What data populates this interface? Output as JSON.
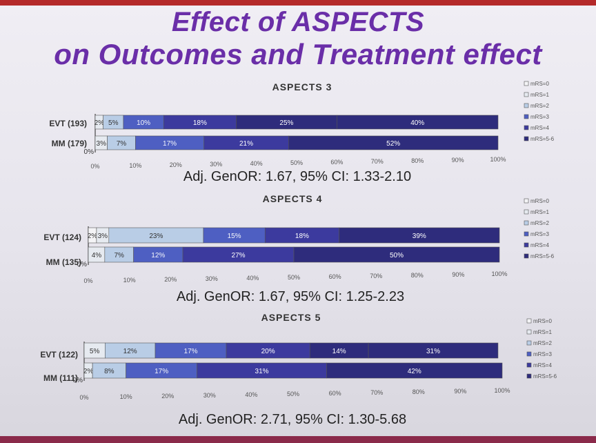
{
  "title_lines": [
    "Effect of ASPECTS",
    "on Outcomes and Treatment effect"
  ],
  "chart_data": [
    {
      "type": "bar",
      "stacked": true,
      "orientation": "horizontal",
      "title": "ASPECTS 3",
      "categories": [
        "EVT (193)",
        "MM (179)"
      ],
      "x_ticks": [
        "0%",
        "10%",
        "20%",
        "30%",
        "40%",
        "50%",
        "60%",
        "70%",
        "80%",
        "90%",
        "100%"
      ],
      "xlim": [
        0,
        100
      ],
      "series": [
        {
          "name": "mRS=0",
          "values": [
            0,
            0
          ],
          "labels": [
            "",
            "0%"
          ]
        },
        {
          "name": "mRS=1",
          "values": [
            2,
            3
          ],
          "labels": [
            "2%",
            "3%"
          ]
        },
        {
          "name": "mRS=2",
          "values": [
            5,
            7
          ],
          "labels": [
            "5%",
            "7%"
          ]
        },
        {
          "name": "mRS=3",
          "values": [
            10,
            17
          ],
          "labels": [
            "10%",
            "17%"
          ]
        },
        {
          "name": "mRS=4",
          "values": [
            18,
            21
          ],
          "labels": [
            "18%",
            "21%"
          ]
        },
        {
          "name": "mRS=5-6",
          "values": [
            25,
            52
          ],
          "labels": [
            "25%",
            "52%"
          ]
        },
        {
          "name": "",
          "values": [
            40,
            0
          ],
          "labels": [
            "40%",
            ""
          ]
        }
      ],
      "stat": "Adj. GenOR: 1.67, 95% CI: 1.33-2.10"
    },
    {
      "type": "bar",
      "stacked": true,
      "orientation": "horizontal",
      "title": "ASPECTS 4",
      "categories": [
        "EVT (124)",
        "MM (135)"
      ],
      "x_ticks": [
        "0%",
        "10%",
        "20%",
        "30%",
        "40%",
        "50%",
        "60%",
        "70%",
        "80%",
        "90%",
        "100%"
      ],
      "xlim": [
        0,
        100
      ],
      "series": [
        {
          "name": "mRS=0",
          "values": [
            2,
            0
          ],
          "labels": [
            "2%",
            "0%"
          ]
        },
        {
          "name": "mRS=1",
          "values": [
            3,
            4
          ],
          "labels": [
            "3%",
            "4%"
          ]
        },
        {
          "name": "mRS=2",
          "values": [
            23,
            7
          ],
          "labels": [
            "23%",
            "7%"
          ]
        },
        {
          "name": "mRS=3",
          "values": [
            15,
            12
          ],
          "labels": [
            "15%",
            "12%"
          ]
        },
        {
          "name": "mRS=4",
          "values": [
            18,
            27
          ],
          "labels": [
            "18%",
            "27%"
          ]
        },
        {
          "name": "mRS=5-6",
          "values": [
            39,
            50
          ],
          "labels": [
            "39%",
            "50%"
          ]
        }
      ],
      "stat": "Adj. GenOR: 1.67, 95% CI: 1.25-2.23"
    },
    {
      "type": "bar",
      "stacked": true,
      "orientation": "horizontal",
      "title": "ASPECTS 5",
      "categories": [
        "EVT (122)",
        "MM (111)"
      ],
      "x_ticks": [
        "0%",
        "10%",
        "20%",
        "30%",
        "40%",
        "50%",
        "60%",
        "70%",
        "80%",
        "90%",
        "100%"
      ],
      "xlim": [
        0,
        100
      ],
      "series": [
        {
          "name": "mRS=0",
          "values": [
            0,
            0
          ],
          "labels": [
            "",
            "0%"
          ]
        },
        {
          "name": "mRS=1",
          "values": [
            5,
            2
          ],
          "labels": [
            "5%",
            "2%"
          ]
        },
        {
          "name": "mRS=2",
          "values": [
            12,
            8
          ],
          "labels": [
            "12%",
            "8%"
          ]
        },
        {
          "name": "mRS=3",
          "values": [
            17,
            17
          ],
          "labels": [
            "17%",
            "17%"
          ]
        },
        {
          "name": "mRS=4",
          "values": [
            20,
            31
          ],
          "labels": [
            "20%",
            "31%"
          ]
        },
        {
          "name": "mRS=5-6",
          "values": [
            14,
            42
          ],
          "labels": [
            "14%",
            "42%"
          ]
        },
        {
          "name": "",
          "values": [
            31,
            0
          ],
          "labels": [
            "31%",
            ""
          ]
        }
      ],
      "stat": "Adj. GenOR: 2.71, 95% CI: 1.30-5.68"
    }
  ],
  "colors": [
    "#f4f4f6",
    "#e6eaf0",
    "#b9cde6",
    "#4e5fc2",
    "#3c3a9e",
    "#2e2c7c"
  ]
}
